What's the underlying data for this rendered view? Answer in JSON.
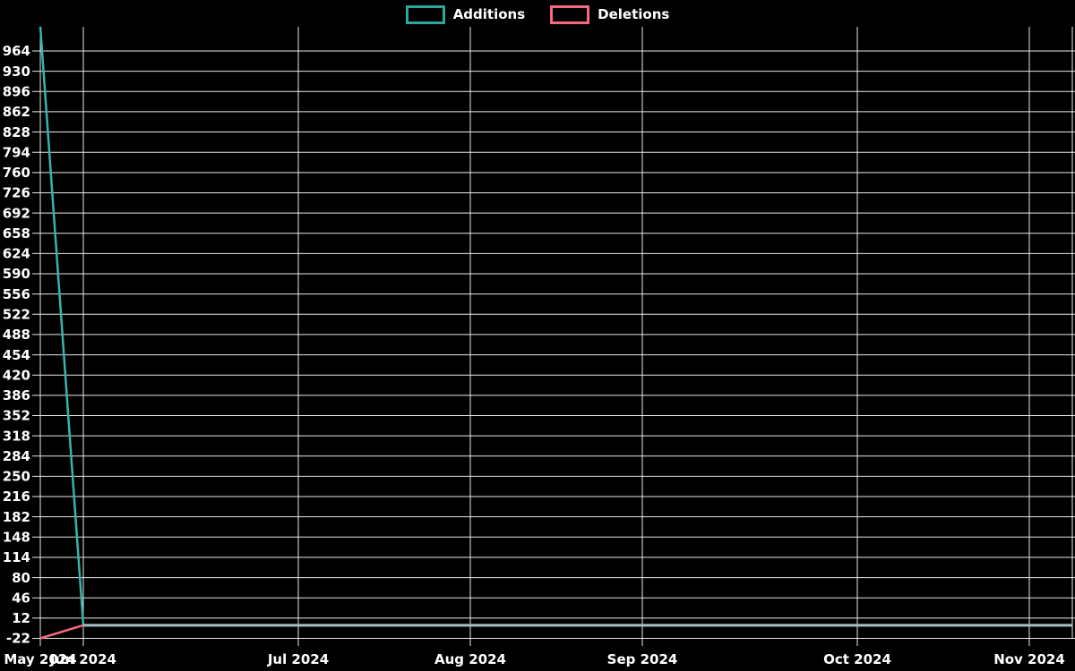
{
  "page": {
    "background": "#000000",
    "text_color": "#ffffff"
  },
  "legend": {
    "items": [
      {
        "label": "Additions",
        "color": "#2aa79f"
      },
      {
        "label": "Deletions",
        "color": "#f4697e"
      }
    ]
  },
  "chart_data": {
    "type": "line",
    "title": "",
    "xlabel": "",
    "ylabel": "",
    "x_unit": "week",
    "weeks_total": 25,
    "x_tick_labels": [
      {
        "week": 0,
        "label": "May 2024"
      },
      {
        "week": 1,
        "label": "Jun 2024"
      },
      {
        "week": 6,
        "label": "Jul 2024"
      },
      {
        "week": 10,
        "label": "Aug 2024"
      },
      {
        "week": 14,
        "label": "Sep 2024"
      },
      {
        "week": 19,
        "label": "Oct 2024"
      },
      {
        "week": 23,
        "label": "Nov 2024"
      }
    ],
    "grid_weeks": [
      0,
      1,
      6,
      10,
      14,
      19,
      23,
      24
    ],
    "y_ticks": [
      -22,
      12,
      46,
      80,
      114,
      148,
      182,
      216,
      250,
      284,
      318,
      352,
      386,
      420,
      454,
      488,
      522,
      556,
      590,
      624,
      658,
      692,
      726,
      760,
      794,
      828,
      862,
      896,
      930,
      964
    ],
    "ylim": [
      -22,
      1005
    ],
    "grid": true,
    "grid_color": "#e8e8e8",
    "legend_position": "top-center",
    "series": [
      {
        "name": "Additions",
        "color": "#35b5ae",
        "values": [
          1005,
          0,
          0,
          0,
          0,
          0,
          0,
          0,
          0,
          0,
          0,
          0,
          0,
          0,
          0,
          0,
          0,
          0,
          0,
          0,
          0,
          0,
          0,
          0,
          0
        ]
      },
      {
        "name": "Deletions",
        "color": "#f4697e",
        "values": [
          -22,
          0,
          0,
          0,
          0,
          0,
          0,
          0,
          0,
          0,
          0,
          0,
          0,
          0,
          0,
          0,
          0,
          0,
          0,
          0,
          0,
          0,
          0,
          0,
          0
        ]
      }
    ],
    "overlap_color": "#a8bec5"
  }
}
